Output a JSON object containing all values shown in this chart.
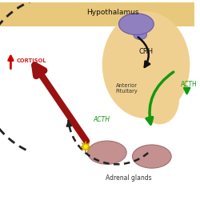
{
  "background_color": "#ffffff",
  "hypothalamus_label": "Hypothalamus",
  "crh_label": "CRH",
  "anterior_pituitary_label": "Anterior\nPituitary",
  "acth_label_inner": "ACTH",
  "acth_label_outer": "ACTH",
  "cortisol_label": "CORTISOL",
  "adrenal_label": "Adrenal glands",
  "beige_bg_color": "#f0d090",
  "hyp_strip_color": "#e8c87a",
  "pituitary_body_color": "#e8c07a",
  "hypothalamus_ellipse_color": "#9080c0",
  "hypothalamus_ellipse_edge": "#6858a8",
  "arrow_dotted_color": "#222222",
  "arrow_crh_color": "#111111",
  "arrow_cortisol_color": "#991111",
  "arrow_acth_green_color": "#119911",
  "arrow_cortisol_up_color": "#cc0000",
  "star_color": "#ffee00",
  "star_edge_color": "#cc9900",
  "gland_color": "#c49090",
  "gland_edge_color": "#a07070",
  "label_acth_color": "#119911",
  "label_cortisol_color": "#cc2222",
  "label_color": "#333333"
}
